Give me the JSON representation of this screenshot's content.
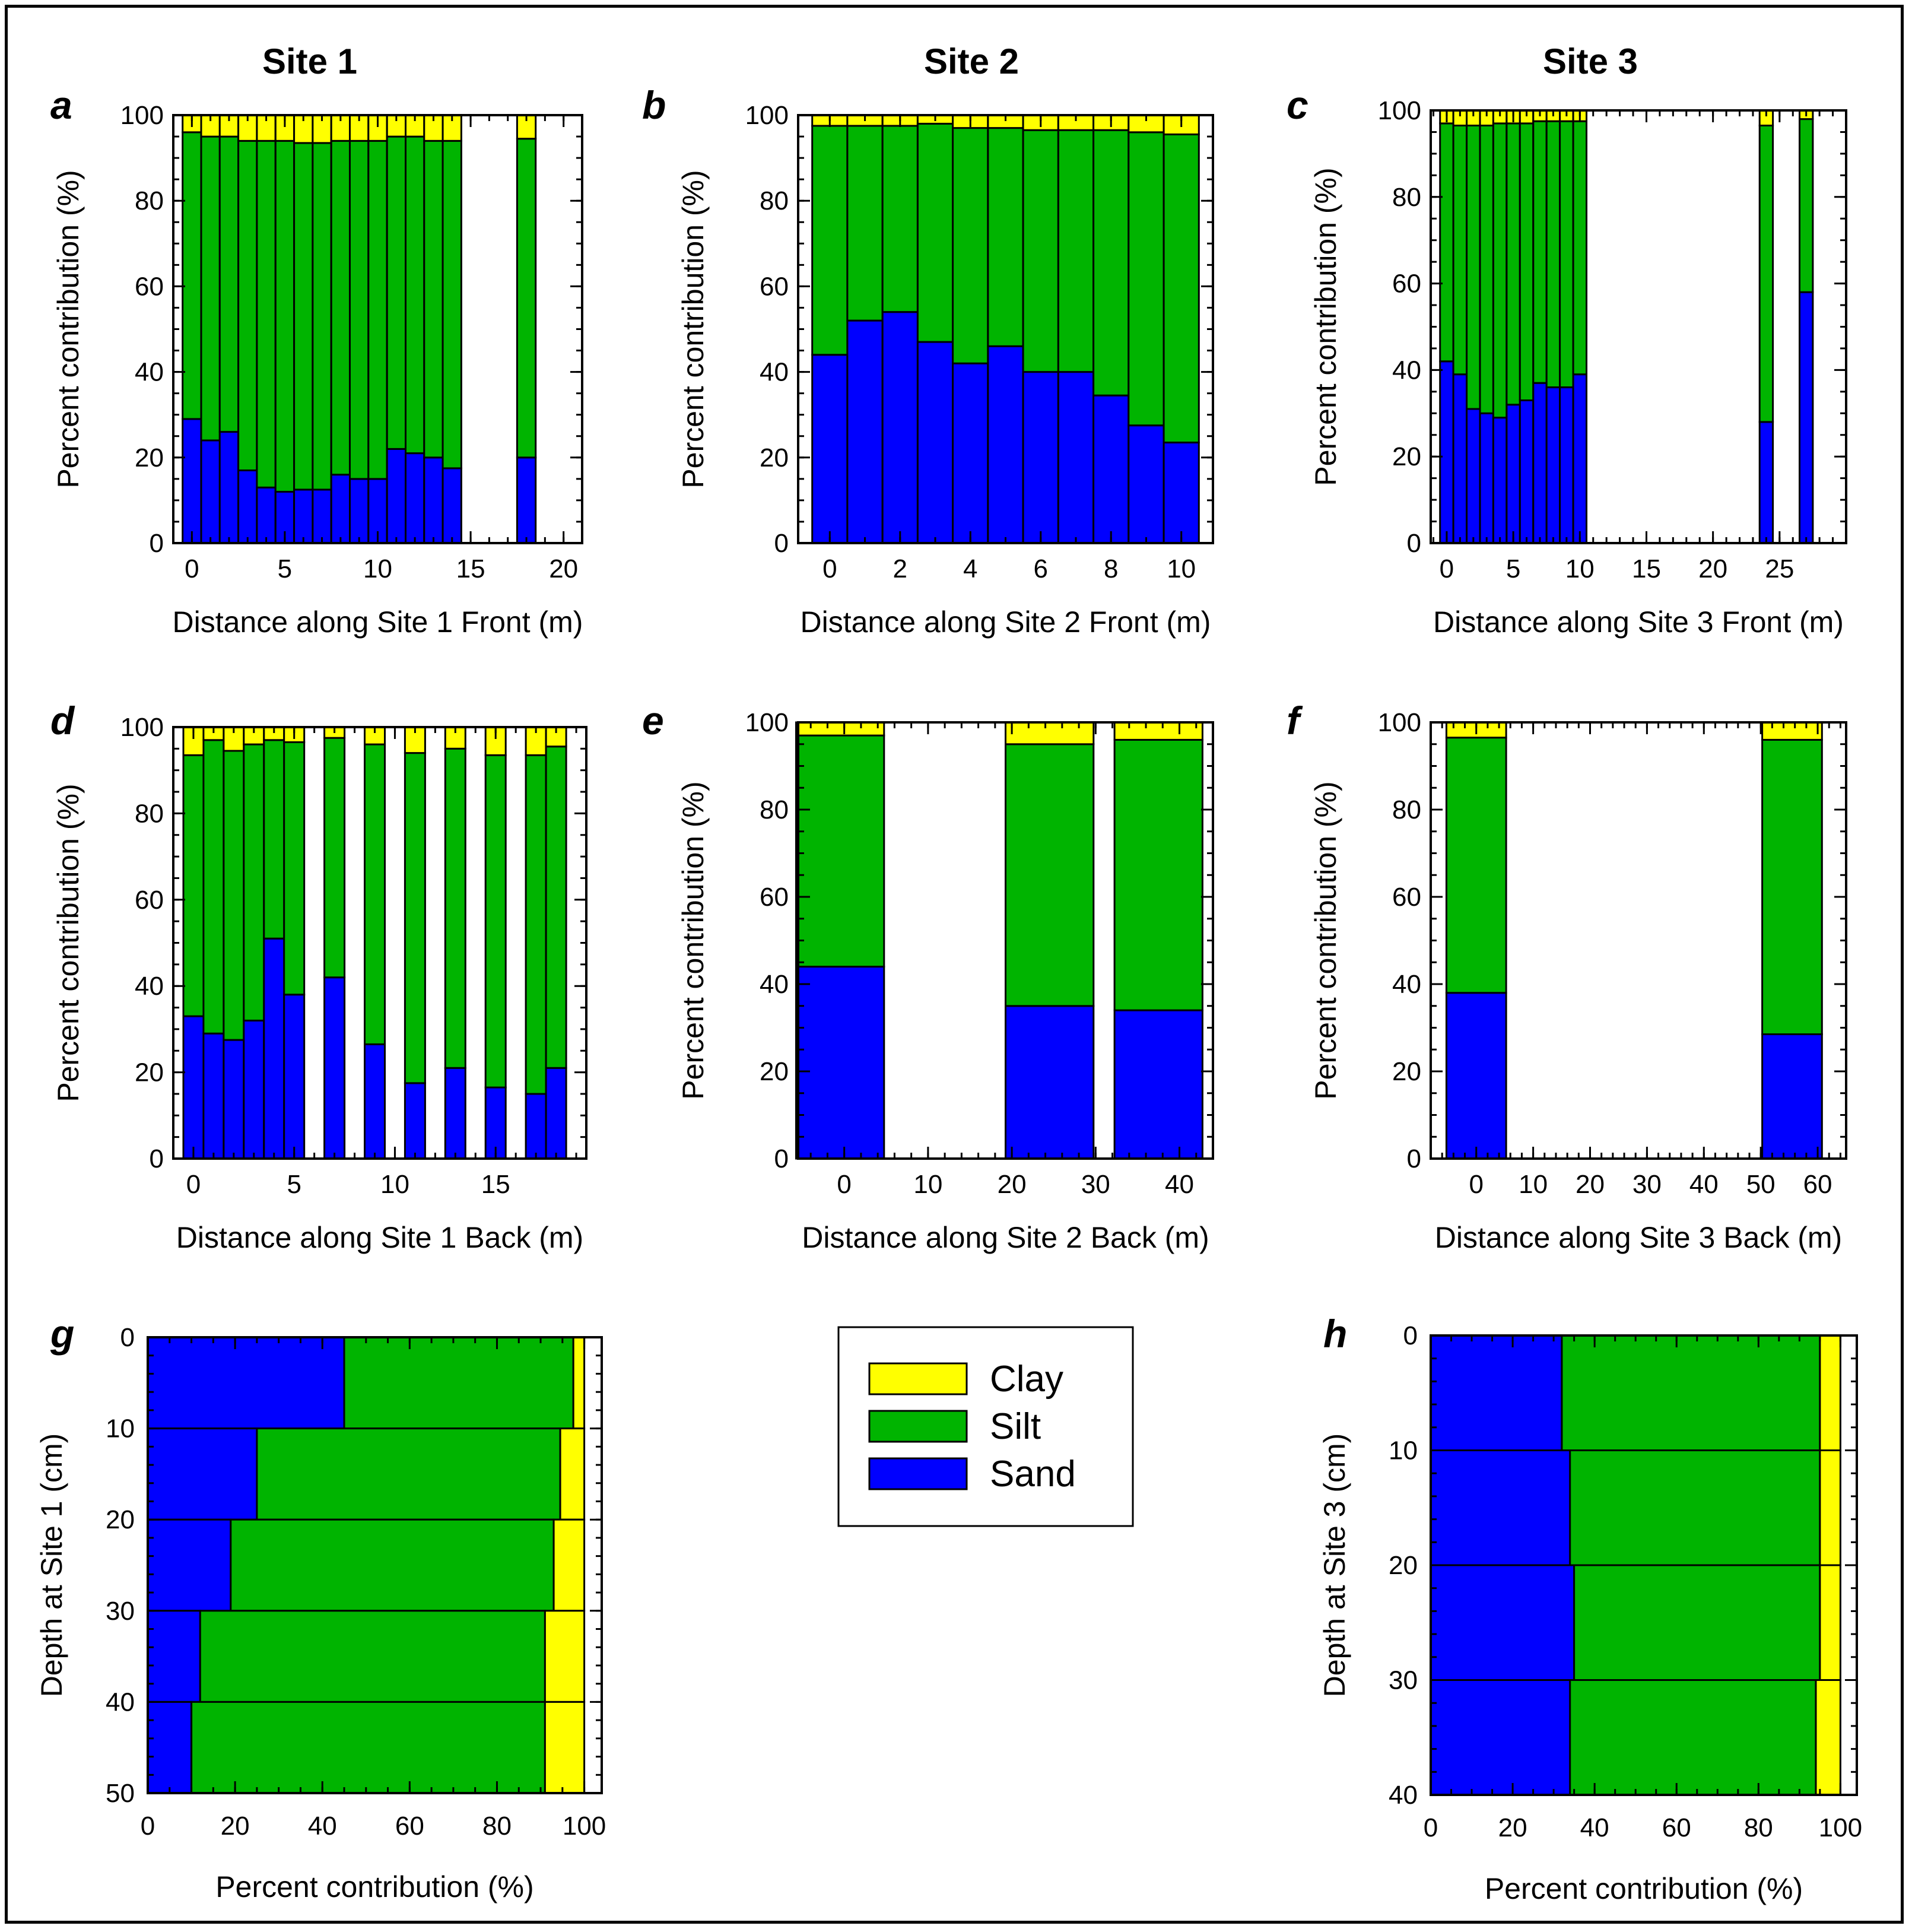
{
  "colors": {
    "clay": "#ffff00",
    "silt": "#00b400",
    "sand": "#0000ff"
  },
  "site_titles": [
    "Site 1",
    "Site 2",
    "Site 3"
  ],
  "legend": {
    "items": [
      {
        "key": "clay",
        "label": "Clay"
      },
      {
        "key": "silt",
        "label": "Silt"
      },
      {
        "key": "sand",
        "label": "Sand"
      }
    ]
  },
  "chart_data": [
    {
      "id": "a",
      "letter": "a",
      "type": "bar",
      "orientation": "vertical",
      "stacked": true,
      "xlabel": "Distance along Site 1 Front (m)",
      "ylabel": "Percent contribution (%)",
      "xlim": [
        -1,
        21
      ],
      "ylim": [
        0,
        100
      ],
      "xticks": [
        0,
        5,
        10,
        15,
        20
      ],
      "yticks": [
        0,
        20,
        40,
        60,
        80,
        100
      ],
      "minor_x": 1,
      "minor_y": 5,
      "bar_width": 1,
      "positions": [
        0,
        1,
        2,
        3,
        4,
        5,
        6,
        7,
        8,
        9,
        10,
        11,
        12,
        13,
        14,
        18
      ],
      "series": [
        {
          "name": "Sand",
          "values": [
            29,
            24,
            26,
            17,
            13,
            12,
            12.5,
            12.5,
            16,
            15,
            15,
            22,
            21,
            20,
            17.5,
            20
          ]
        },
        {
          "name": "Silt",
          "values": [
            67,
            71,
            69,
            77,
            81,
            82,
            81,
            81,
            78,
            79,
            79,
            73,
            74,
            74,
            76.5,
            74.5
          ]
        },
        {
          "name": "Clay",
          "values": [
            4,
            5,
            5,
            6,
            6,
            6,
            6.5,
            6.5,
            6,
            6,
            6,
            5,
            5,
            6,
            6,
            5.5
          ]
        }
      ]
    },
    {
      "id": "b",
      "letter": "b",
      "type": "bar",
      "orientation": "vertical",
      "stacked": true,
      "xlabel": "Distance along Site 2 Front (m)",
      "ylabel": "Percent contribution (%)",
      "xlim": [
        -0.9,
        10.9
      ],
      "ylim": [
        0,
        100
      ],
      "xticks": [
        0,
        2,
        4,
        6,
        8,
        10
      ],
      "yticks": [
        0,
        20,
        40,
        60,
        80,
        100
      ],
      "minor_x": 1,
      "minor_y": 5,
      "bar_width": 1,
      "positions": [
        0,
        1,
        2,
        3,
        4,
        5,
        6,
        7,
        8,
        9,
        10
      ],
      "series": [
        {
          "name": "Sand",
          "values": [
            44,
            52,
            54,
            47,
            42,
            46,
            40,
            40,
            34.5,
            27.5,
            23.5
          ]
        },
        {
          "name": "Silt",
          "values": [
            53.5,
            45.5,
            43.5,
            51,
            55,
            51,
            56.5,
            56.5,
            62,
            68.5,
            72
          ]
        },
        {
          "name": "Clay",
          "values": [
            2.5,
            2.5,
            2.5,
            2,
            3,
            3,
            3.5,
            3.5,
            3.5,
            4,
            4.5
          ]
        }
      ]
    },
    {
      "id": "c",
      "letter": "c",
      "type": "bar",
      "orientation": "vertical",
      "stacked": true,
      "xlabel": "Distance along Site 3 Front (m)",
      "ylabel": "Percent contribution (%)",
      "xlim": [
        -1.2,
        30
      ],
      "ylim": [
        0,
        100
      ],
      "xticks": [
        0,
        5,
        10,
        15,
        20,
        25
      ],
      "yticks": [
        0,
        20,
        40,
        60,
        80,
        100
      ],
      "minor_x": 1,
      "minor_y": 5,
      "bar_width": 1,
      "positions": [
        0,
        1,
        2,
        3,
        4,
        5,
        6,
        7,
        8,
        9,
        10,
        24,
        27
      ],
      "series": [
        {
          "name": "Sand",
          "values": [
            42,
            39,
            31,
            30,
            29,
            32,
            33,
            37,
            36,
            36,
            39,
            28,
            58
          ]
        },
        {
          "name": "Silt",
          "values": [
            55,
            57.5,
            65.5,
            66.5,
            68,
            65,
            64,
            60.5,
            61.5,
            61.5,
            58.5,
            68.5,
            40
          ]
        },
        {
          "name": "Clay",
          "values": [
            3,
            3.5,
            3.5,
            3.5,
            3,
            3,
            3,
            2.5,
            2.5,
            2.5,
            2.5,
            3.5,
            2
          ]
        }
      ]
    },
    {
      "id": "d",
      "letter": "d",
      "type": "bar",
      "orientation": "vertical",
      "stacked": true,
      "xlabel": "Distance along Site 1 Back (m)",
      "ylabel": "Percent contribution (%)",
      "xlim": [
        -1,
        19.5
      ],
      "ylim": [
        0,
        100
      ],
      "xticks": [
        0,
        5,
        10,
        15
      ],
      "yticks": [
        0,
        20,
        40,
        60,
        80,
        100
      ],
      "minor_x": 1,
      "minor_y": 5,
      "bar_width": 1,
      "positions": [
        0,
        1,
        2,
        3,
        4,
        5,
        7,
        9,
        11,
        13,
        15,
        17,
        18
      ],
      "series": [
        {
          "name": "Sand",
          "values": [
            33,
            29,
            27.5,
            32,
            51,
            38,
            42,
            26.5,
            17.5,
            21,
            16.5,
            15,
            21
          ]
        },
        {
          "name": "Silt",
          "values": [
            60.5,
            68,
            67,
            64,
            46,
            58.5,
            55.5,
            69.5,
            76.5,
            74,
            77,
            78.5,
            74.5
          ]
        },
        {
          "name": "Clay",
          "values": [
            6.5,
            3,
            5.5,
            4,
            3,
            3.5,
            2.5,
            4,
            6,
            5,
            6.5,
            6.5,
            4.5
          ]
        }
      ]
    },
    {
      "id": "e",
      "letter": "e",
      "type": "bar",
      "orientation": "vertical",
      "stacked": true,
      "xlabel": "Distance along Site 2 Back (m)",
      "ylabel": "Percent contribution (%)",
      "xlim": [
        -5.5,
        44
      ],
      "ylim": [
        0,
        100
      ],
      "xticks": [
        0,
        10,
        20,
        30,
        40
      ],
      "yticks": [
        0,
        20,
        40,
        60,
        80,
        100
      ],
      "minor_x": 2,
      "minor_y": 5,
      "bar_width": 10.5,
      "positions": [
        -0.5,
        24.5,
        37.5
      ],
      "series": [
        {
          "name": "Sand",
          "values": [
            44,
            35,
            34
          ]
        },
        {
          "name": "Silt",
          "values": [
            53,
            60,
            62
          ]
        },
        {
          "name": "Clay",
          "values": [
            3,
            5,
            4
          ]
        }
      ]
    },
    {
      "id": "f",
      "letter": "f",
      "type": "bar",
      "orientation": "vertical",
      "stacked": true,
      "xlabel": "Distance along Site 3 Back (m)",
      "ylabel": "Percent contribution (%)",
      "xlim": [
        -8,
        65
      ],
      "ylim": [
        0,
        100
      ],
      "xticks": [
        0,
        10,
        20,
        30,
        40,
        50,
        60
      ],
      "yticks": [
        0,
        20,
        40,
        60,
        80,
        100
      ],
      "minor_x": 2,
      "minor_y": 5,
      "bar_width": 10.5,
      "positions": [
        0,
        55.5
      ],
      "series": [
        {
          "name": "Sand",
          "values": [
            38,
            28.5
          ]
        },
        {
          "name": "Silt",
          "values": [
            58.5,
            67.5
          ]
        },
        {
          "name": "Clay",
          "values": [
            3.5,
            4
          ]
        }
      ]
    },
    {
      "id": "g",
      "letter": "g",
      "type": "bar",
      "orientation": "horizontal",
      "stacked": true,
      "xlabel": "Percent contribution (%)",
      "ylabel": "Depth at Site 1 (cm)",
      "xlim": [
        0,
        104
      ],
      "ylim": [
        0,
        50
      ],
      "xticks": [
        0,
        20,
        40,
        60,
        80,
        100
      ],
      "yticks": [
        0,
        10,
        20,
        30,
        40,
        50
      ],
      "minor_x": 5,
      "minor_y": 2,
      "bands": [
        [
          0,
          10
        ],
        [
          10,
          20
        ],
        [
          20,
          30
        ],
        [
          30,
          40
        ],
        [
          40,
          50
        ]
      ],
      "series": [
        {
          "name": "Sand",
          "values": [
            45,
            25,
            19,
            12,
            10
          ]
        },
        {
          "name": "Silt",
          "values": [
            52.5,
            69.5,
            74,
            79,
            81
          ]
        },
        {
          "name": "Clay",
          "values": [
            2.5,
            5.5,
            7,
            9,
            9
          ]
        }
      ]
    },
    {
      "id": "h",
      "letter": "h",
      "type": "bar",
      "orientation": "horizontal",
      "stacked": true,
      "xlabel": "Percent contribution (%)",
      "ylabel": "Depth at Site 3 (cm)",
      "xlim": [
        0,
        104
      ],
      "ylim": [
        0,
        40
      ],
      "xticks": [
        0,
        20,
        40,
        60,
        80,
        100
      ],
      "yticks": [
        0,
        10,
        20,
        30,
        40
      ],
      "minor_x": 5,
      "minor_y": 2,
      "bands": [
        [
          0,
          10
        ],
        [
          10,
          20
        ],
        [
          20,
          30
        ],
        [
          30,
          40
        ]
      ],
      "series": [
        {
          "name": "Sand",
          "values": [
            32,
            34,
            35,
            34
          ]
        },
        {
          "name": "Silt",
          "values": [
            63,
            61,
            60,
            60
          ]
        },
        {
          "name": "Clay",
          "values": [
            5,
            5,
            5,
            6
          ]
        }
      ]
    }
  ]
}
